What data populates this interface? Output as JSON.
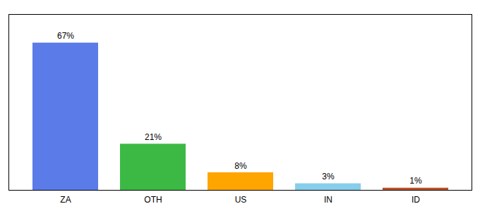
{
  "chart_data": {
    "type": "bar",
    "categories": [
      "ZA",
      "OTH",
      "US",
      "IN",
      "ID"
    ],
    "values": [
      67,
      21,
      8,
      3,
      1
    ],
    "value_labels": [
      "67%",
      "21%",
      "8%",
      "3%",
      "1%"
    ],
    "colors": [
      "#5B7BE8",
      "#3CB944",
      "#FFA500",
      "#87CEEB",
      "#C0522A"
    ],
    "ylim": [
      0,
      80
    ],
    "data_labels": true,
    "tick_labels": "x",
    "grid": false
  }
}
